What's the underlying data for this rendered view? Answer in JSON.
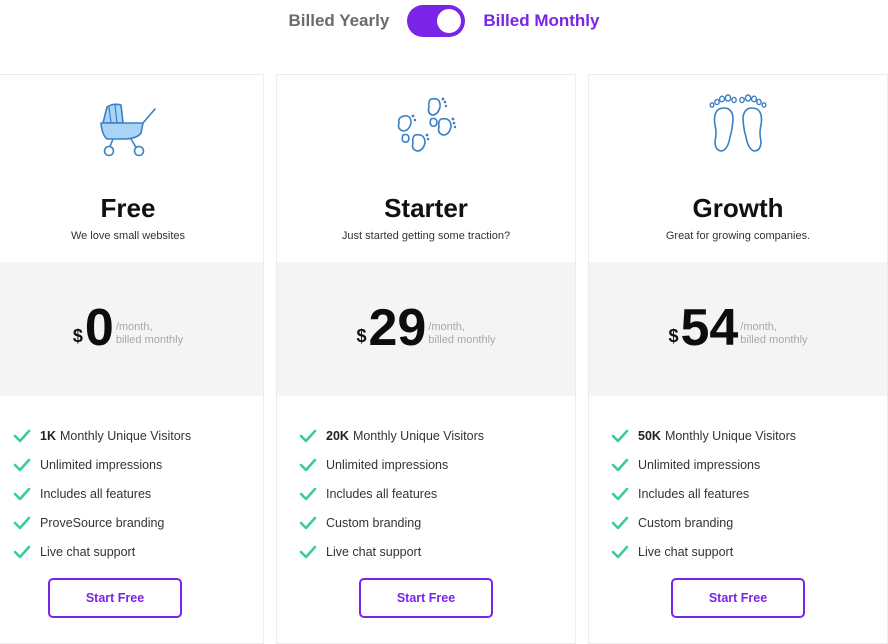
{
  "billing": {
    "yearly_label": "Billed Yearly",
    "monthly_label": "Billed Monthly",
    "selected": "monthly"
  },
  "colors": {
    "accent": "#7a24e8",
    "check": "#3ccaa4",
    "icon_stroke": "#3b7fc4",
    "icon_fill": "#a9d4f5",
    "price_band": "#f4f4f4"
  },
  "plans": [
    {
      "icon": "baby-stroller-icon",
      "name": "Free",
      "tagline": "We love small websites",
      "currency": "$",
      "amount": "0",
      "period_line1": "/month,",
      "period_line2": "billed monthly",
      "features": [
        {
          "bold": "1K",
          "text": "Monthly Unique Visitors"
        },
        {
          "bold": "",
          "text": "Unlimited impressions"
        },
        {
          "bold": "",
          "text": "Includes all features"
        },
        {
          "bold": "",
          "text": "ProveSource branding"
        },
        {
          "bold": "",
          "text": "Live chat support"
        }
      ],
      "cta": "Start Free"
    },
    {
      "icon": "baby-footprints-icon",
      "name": "Starter",
      "tagline": "Just started getting some traction?",
      "currency": "$",
      "amount": "29",
      "period_line1": "/month,",
      "period_line2": "billed monthly",
      "features": [
        {
          "bold": "20K",
          "text": "Monthly Unique Visitors"
        },
        {
          "bold": "",
          "text": "Unlimited impressions"
        },
        {
          "bold": "",
          "text": "Includes all features"
        },
        {
          "bold": "",
          "text": "Custom branding"
        },
        {
          "bold": "",
          "text": "Live chat support"
        }
      ],
      "cta": "Start Free"
    },
    {
      "icon": "footprints-icon",
      "name": "Growth",
      "tagline": "Great for growing companies.",
      "currency": "$",
      "amount": "54",
      "period_line1": "/month,",
      "period_line2": "billed monthly",
      "features": [
        {
          "bold": "50K",
          "text": "Monthly Unique Visitors"
        },
        {
          "bold": "",
          "text": "Unlimited impressions"
        },
        {
          "bold": "",
          "text": "Includes all features"
        },
        {
          "bold": "",
          "text": "Custom branding"
        },
        {
          "bold": "",
          "text": "Live chat support"
        }
      ],
      "cta": "Start Free"
    }
  ]
}
